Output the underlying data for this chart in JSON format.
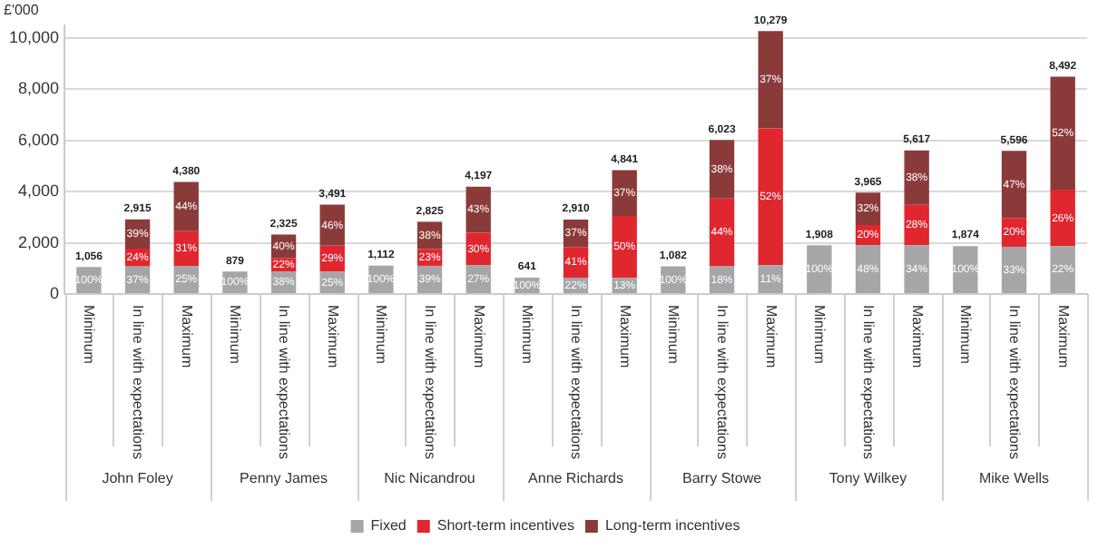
{
  "chart_data": {
    "type": "bar",
    "stacked": true,
    "ylabel": "£'000",
    "categories": [
      "Minimum",
      "In line with expectations",
      "Maximum",
      "Minimum",
      "In line with expectations",
      "Maximum",
      "Minimum",
      "In line with expectations",
      "Maximum",
      "Minimum",
      "In line with expectations",
      "Maximum",
      "Minimum",
      "In line with expectations",
      "Maximum",
      "Minimum",
      "In line with expectations",
      "Maximum",
      "Minimum",
      "In line with expectations",
      "Maximum"
    ],
    "series": [
      {
        "name": "Fixed",
        "color": "#a6a6a8",
        "values": [
          1056,
          1078,
          1095,
          879,
          884,
          873,
          1112,
          1102,
          1133,
          641,
          640,
          629,
          1082,
          1084,
          1131,
          1908,
          1903,
          1910,
          1874,
          1847,
          1868
        ]
      },
      {
        "name": "Short-term incentives",
        "color": "#e0262e",
        "values": [
          null,
          700,
          1358,
          null,
          512,
          1012,
          null,
          650,
          1259,
          null,
          1193,
          2421,
          null,
          2650,
          5345,
          null,
          793,
          1573,
          null,
          1119,
          2208
        ]
      },
      {
        "name": "Long-term incentives",
        "color": "#8b3a3a",
        "values": [
          null,
          1137,
          1927,
          null,
          929,
          1606,
          null,
          1073,
          1805,
          null,
          1077,
          1791,
          null,
          2289,
          3803,
          null,
          1269,
          2134,
          null,
          2630,
          4416
        ]
      }
    ],
    "totals": [
      "1,056",
      "2,915",
      "4,380",
      "879",
      "2,325",
      "3,491",
      "1,112",
      "2,825",
      "4,197",
      "641",
      "2,910",
      "4,841",
      "1,082",
      "6,023",
      "10,279",
      "1,908",
      "3,965",
      "5,617",
      "1,874",
      "5,596",
      "8,492"
    ],
    "annotations": [
      "John Foley",
      "Penny James",
      "Nic Nicandrou",
      "Anne Richards",
      "Barry Stowe",
      "Tony Wilkey",
      "Mike Wells",
      "100%",
      "37%",
      "24%",
      "39%",
      "25%",
      "31%",
      "44%",
      "100%",
      "38%",
      "22%",
      "40%",
      "25%",
      "29%",
      "46%",
      "100%",
      "39%",
      "23%",
      "38%",
      "27%",
      "30%",
      "43%",
      "100%",
      "22%",
      "41%",
      "37%",
      "13%",
      "50%",
      "37%",
      "100%",
      "18%",
      "44%",
      "38%",
      "11%",
      "52%",
      "37%",
      "100%",
      "48%",
      "20%",
      "32%",
      "34%",
      "28%",
      "38%",
      "100%",
      "33%",
      "20%",
      "47%",
      "22%",
      "26%",
      "52%"
    ],
    "ylim": [
      0,
      10500
    ],
    "yticks": [
      0,
      {
        "value": 2000,
        "label": "2,000"
      },
      {
        "value": 4000,
        "label": "4,000"
      },
      {
        "value": 6000,
        "label": "6,000"
      },
      {
        "value": 8000,
        "label": "8,000"
      },
      {
        "value": 10000,
        "label": "10,000"
      }
    ],
    "grid": "y",
    "legend": "bottom"
  }
}
